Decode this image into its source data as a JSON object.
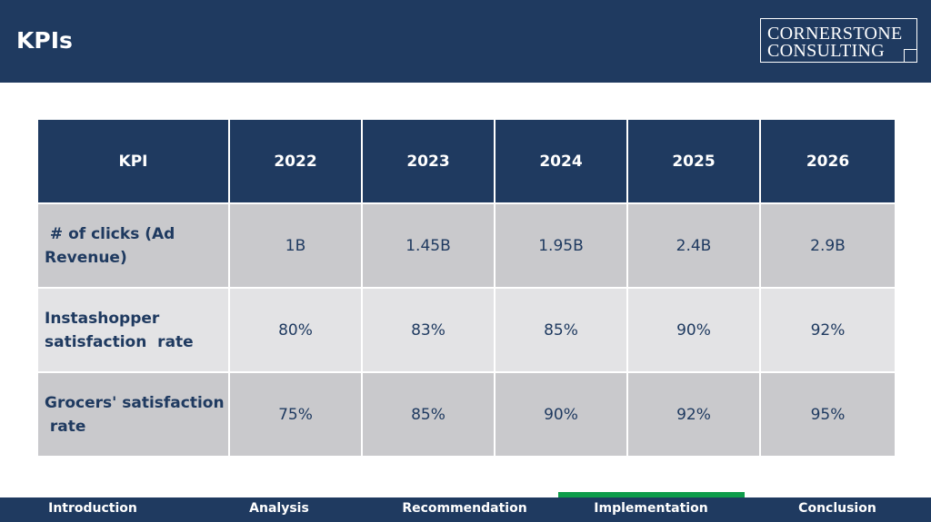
{
  "header": {
    "title": "KPIs",
    "logo_line1": "CORNERSTONE",
    "logo_line2": "CONSULTING"
  },
  "table": {
    "columns": [
      "KPI",
      "2022",
      "2023",
      "2024",
      "2025",
      "2026"
    ],
    "rows": [
      {
        "label": " # of clicks (Ad Revenue)",
        "values": [
          "1B",
          "1.45B",
          "1.95B",
          "2.4B",
          "2.9B"
        ]
      },
      {
        "label": "Instashopper satisfaction  rate",
        "values": [
          "80%",
          "83%",
          "85%",
          "90%",
          "92%"
        ]
      },
      {
        "label": "Grocers' satisfaction\n rate",
        "values": [
          "75%",
          "85%",
          "90%",
          "92%",
          "95%"
        ]
      }
    ]
  },
  "nav": {
    "items": [
      "Introduction",
      "Analysis",
      "Recommendation",
      "Implementation",
      "Conclusion"
    ],
    "active": "Implementation",
    "active_color": "#0e9c4b"
  },
  "colors": {
    "primary": "#1f3a60",
    "row_dark": "#c9c9cc",
    "row_light": "#e3e3e5"
  }
}
